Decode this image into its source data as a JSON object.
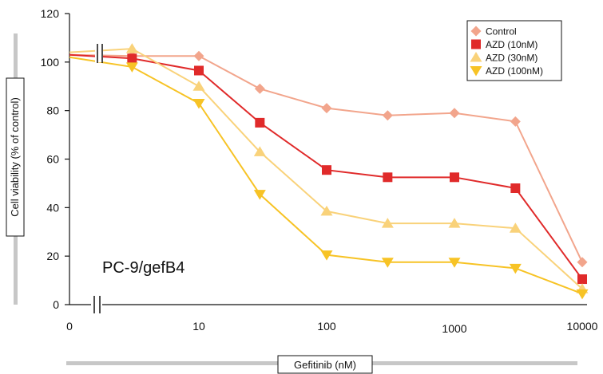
{
  "chart_data": {
    "type": "line",
    "title": "",
    "xlabel": "Gefitinib (nM)",
    "ylabel": "Cell viability (% of control)",
    "annotation": "PC-9/gefB4",
    "x_scale": "log",
    "x_ticks": [
      {
        "value": 0,
        "label": "0"
      },
      {
        "value": 10,
        "label": "10"
      },
      {
        "value": 100,
        "label": "100"
      },
      {
        "value": 1000,
        "label": "1000"
      },
      {
        "value": 10000,
        "label": "10000"
      }
    ],
    "y_ticks": [
      0,
      20,
      40,
      60,
      80,
      100,
      120
    ],
    "ylim": [
      0,
      120
    ],
    "axis_break": true,
    "x": [
      0,
      3,
      10,
      30,
      100,
      300,
      1000,
      3000,
      10000
    ],
    "legend_position": "top-right",
    "series": [
      {
        "name": "Control",
        "color": "#f2a58c",
        "marker": "diamond",
        "values": [
          103,
          102.5,
          102.5,
          89,
          81,
          78,
          79,
          75.5,
          17.5
        ]
      },
      {
        "name": "AZD (10nM)",
        "color": "#e02a2a",
        "marker": "square",
        "values": [
          103,
          101.5,
          96.5,
          75,
          55.5,
          52.5,
          52.5,
          48,
          10.5
        ]
      },
      {
        "name": "AZD (30nM)",
        "color": "#f9d27a",
        "marker": "triangle-up",
        "values": [
          104,
          105.5,
          90,
          63,
          38.5,
          33.5,
          33.5,
          31.5,
          6.5
        ]
      },
      {
        "name": "AZD (100nM)",
        "color": "#f7c325",
        "marker": "triangle-down",
        "values": [
          102,
          98,
          83,
          45.5,
          20.5,
          17.5,
          17.5,
          15,
          4.5
        ]
      }
    ]
  }
}
